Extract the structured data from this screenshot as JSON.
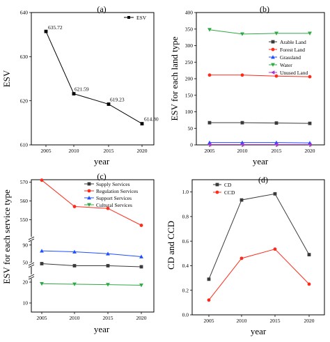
{
  "chart_data": [
    {
      "panel_label": "(a)",
      "type": "line",
      "x": [
        "2005",
        "2010",
        "2015",
        "2020"
      ],
      "series": [
        {
          "name": "ESV",
          "values": [
            635.72,
            621.59,
            619.23,
            614.8
          ],
          "color": "#000000",
          "marker": "square"
        }
      ],
      "data_labels": [
        "635.72",
        "621.59",
        "619.23",
        "614.80"
      ],
      "xlabel": "year",
      "ylabel": "ESV",
      "ylim": [
        610,
        640
      ],
      "yticks": [
        "610",
        "620",
        "630",
        "640"
      ],
      "legend_position": "top-right"
    },
    {
      "panel_label": "(b)",
      "type": "line",
      "x": [
        "2005",
        "2010",
        "2015",
        "2020"
      ],
      "series": [
        {
          "name": "Arable Land",
          "values": [
            67,
            67,
            66,
            65
          ],
          "color": "#3a3a3a",
          "marker": "square"
        },
        {
          "name": "Forest Land",
          "values": [
            211,
            211,
            208,
            206
          ],
          "color": "#ff2a1a",
          "marker": "circle"
        },
        {
          "name": "Grassland",
          "values": [
            7,
            7,
            7,
            6
          ],
          "color": "#1f4fff",
          "marker": "triangle-up"
        },
        {
          "name": "Water",
          "values": [
            348,
            335,
            337,
            337
          ],
          "color": "#2eaa45",
          "marker": "triangle-down"
        },
        {
          "name": "Unused Land",
          "values": [
            1,
            1,
            1,
            1
          ],
          "color": "#b030d0",
          "marker": "triangle-left"
        }
      ],
      "xlabel": "year",
      "ylabel": "ESV for each land type",
      "ylim": [
        0,
        400
      ],
      "yticks": [
        "0",
        "50",
        "100",
        "150",
        "200",
        "250",
        "300",
        "350",
        "400"
      ],
      "legend_position": "right"
    },
    {
      "panel_label": "(c)",
      "type": "line",
      "x": [
        "2005",
        "2010",
        "2015",
        "2020"
      ],
      "series": [
        {
          "name": "Supply Services",
          "values": [
            49.5,
            48.5,
            48.5,
            48.0
          ],
          "color": "#3a3a3a",
          "marker": "square"
        },
        {
          "name": "Regulation Services",
          "values": [
            571,
            557,
            556,
            547
          ],
          "color": "#ff2a1a",
          "marker": "circle"
        },
        {
          "name": "Support Services",
          "values": [
            87,
            86.5,
            85.5,
            84
          ],
          "color": "#1f4fff",
          "marker": "triangle-up"
        },
        {
          "name": "Cultural Services",
          "values": [
            19.2,
            19.0,
            18.8,
            18.5
          ],
          "color": "#2eaa45",
          "marker": "triangle-down"
        }
      ],
      "xlabel": "year",
      "ylabel": "ESV for each service type",
      "broken_axis": true,
      "yticks": [
        "10",
        "20",
        "50",
        "90",
        "550",
        "560",
        "570"
      ],
      "legend_position": "top-right"
    },
    {
      "panel_label": "(d)",
      "type": "line",
      "x": [
        "2005",
        "2010",
        "2015",
        "2020"
      ],
      "series": [
        {
          "name": "CD",
          "values": [
            0.29,
            0.935,
            0.985,
            0.49
          ],
          "color": "#3a3a3a",
          "marker": "square"
        },
        {
          "name": "CCD",
          "values": [
            0.12,
            0.46,
            0.535,
            0.25
          ],
          "color": "#ff2a1a",
          "marker": "circle"
        }
      ],
      "xlabel": "year",
      "ylabel": "CD and CCD",
      "ylim": [
        0.0,
        1.1
      ],
      "yticks": [
        "0.0",
        "0.2",
        "0.4",
        "0.6",
        "0.8",
        "1.0"
      ],
      "legend_position": "top-left"
    }
  ]
}
